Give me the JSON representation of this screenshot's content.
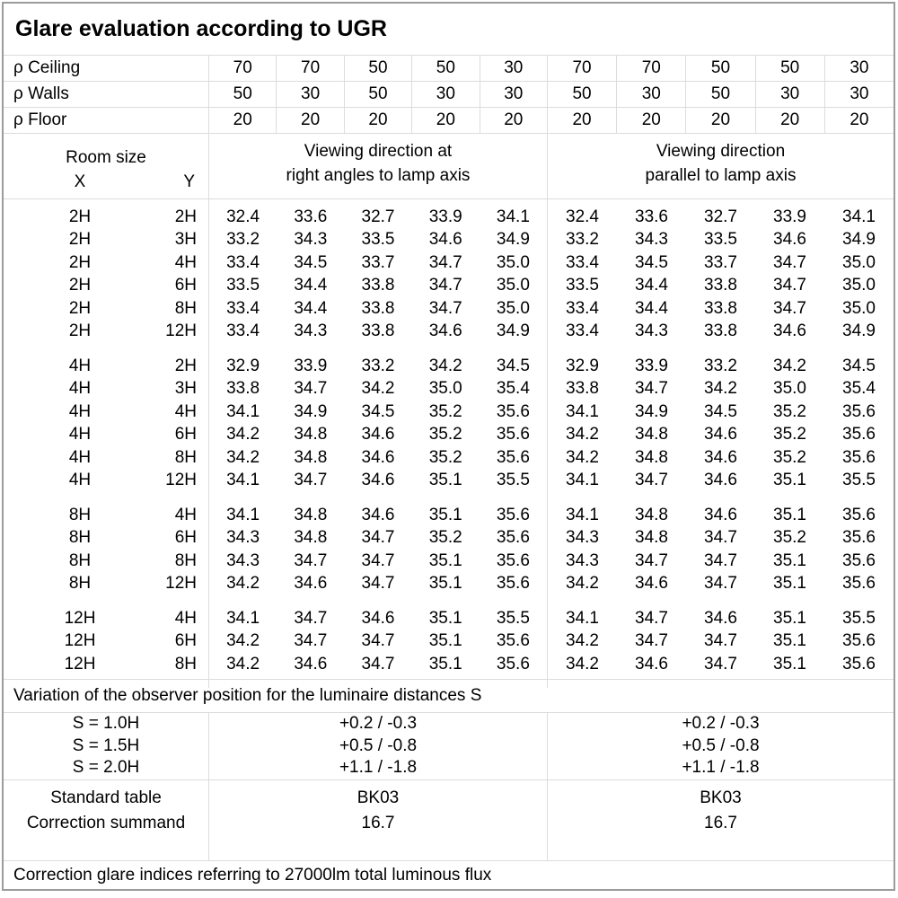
{
  "title": "Glare evaluation according to UGR",
  "colors": {
    "background": "#ffffff",
    "text": "#000000",
    "grid_line": "#dcdcdc",
    "outer_border": "#9b9b9b"
  },
  "header": {
    "rho_rows": [
      {
        "label": "ρ Ceiling",
        "values": [
          "70",
          "70",
          "50",
          "50",
          "30",
          "70",
          "70",
          "50",
          "50",
          "30"
        ]
      },
      {
        "label": "ρ Walls",
        "values": [
          "50",
          "30",
          "50",
          "30",
          "30",
          "50",
          "30",
          "50",
          "30",
          "30"
        ]
      },
      {
        "label": "ρ Floor",
        "values": [
          "20",
          "20",
          "20",
          "20",
          "20",
          "20",
          "20",
          "20",
          "20",
          "20"
        ]
      }
    ],
    "room_size_label": "Room size",
    "x_label": "X",
    "y_label": "Y",
    "viewing_right_angles": [
      "Viewing direction at",
      "right angles to lamp axis"
    ],
    "viewing_parallel": [
      "Viewing direction",
      "parallel to lamp axis"
    ]
  },
  "ugr_table": {
    "blocks": [
      {
        "rows": [
          {
            "x": "2H",
            "y": "2H",
            "right_angles": [
              "32.4",
              "33.6",
              "32.7",
              "33.9",
              "34.1"
            ],
            "parallel": [
              "32.4",
              "33.6",
              "32.7",
              "33.9",
              "34.1"
            ]
          },
          {
            "x": "2H",
            "y": "3H",
            "right_angles": [
              "33.2",
              "34.3",
              "33.5",
              "34.6",
              "34.9"
            ],
            "parallel": [
              "33.2",
              "34.3",
              "33.5",
              "34.6",
              "34.9"
            ]
          },
          {
            "x": "2H",
            "y": "4H",
            "right_angles": [
              "33.4",
              "34.5",
              "33.7",
              "34.7",
              "35.0"
            ],
            "parallel": [
              "33.4",
              "34.5",
              "33.7",
              "34.7",
              "35.0"
            ]
          },
          {
            "x": "2H",
            "y": "6H",
            "right_angles": [
              "33.5",
              "34.4",
              "33.8",
              "34.7",
              "35.0"
            ],
            "parallel": [
              "33.5",
              "34.4",
              "33.8",
              "34.7",
              "35.0"
            ]
          },
          {
            "x": "2H",
            "y": "8H",
            "right_angles": [
              "33.4",
              "34.4",
              "33.8",
              "34.7",
              "35.0"
            ],
            "parallel": [
              "33.4",
              "34.4",
              "33.8",
              "34.7",
              "35.0"
            ]
          },
          {
            "x": "2H",
            "y": "12H",
            "right_angles": [
              "33.4",
              "34.3",
              "33.8",
              "34.6",
              "34.9"
            ],
            "parallel": [
              "33.4",
              "34.3",
              "33.8",
              "34.6",
              "34.9"
            ]
          }
        ]
      },
      {
        "rows": [
          {
            "x": "4H",
            "y": "2H",
            "right_angles": [
              "32.9",
              "33.9",
              "33.2",
              "34.2",
              "34.5"
            ],
            "parallel": [
              "32.9",
              "33.9",
              "33.2",
              "34.2",
              "34.5"
            ]
          },
          {
            "x": "4H",
            "y": "3H",
            "right_angles": [
              "33.8",
              "34.7",
              "34.2",
              "35.0",
              "35.4"
            ],
            "parallel": [
              "33.8",
              "34.7",
              "34.2",
              "35.0",
              "35.4"
            ]
          },
          {
            "x": "4H",
            "y": "4H",
            "right_angles": [
              "34.1",
              "34.9",
              "34.5",
              "35.2",
              "35.6"
            ],
            "parallel": [
              "34.1",
              "34.9",
              "34.5",
              "35.2",
              "35.6"
            ]
          },
          {
            "x": "4H",
            "y": "6H",
            "right_angles": [
              "34.2",
              "34.8",
              "34.6",
              "35.2",
              "35.6"
            ],
            "parallel": [
              "34.2",
              "34.8",
              "34.6",
              "35.2",
              "35.6"
            ]
          },
          {
            "x": "4H",
            "y": "8H",
            "right_angles": [
              "34.2",
              "34.8",
              "34.6",
              "35.2",
              "35.6"
            ],
            "parallel": [
              "34.2",
              "34.8",
              "34.6",
              "35.2",
              "35.6"
            ]
          },
          {
            "x": "4H",
            "y": "12H",
            "right_angles": [
              "34.1",
              "34.7",
              "34.6",
              "35.1",
              "35.5"
            ],
            "parallel": [
              "34.1",
              "34.7",
              "34.6",
              "35.1",
              "35.5"
            ]
          }
        ]
      },
      {
        "rows": [
          {
            "x": "8H",
            "y": "4H",
            "right_angles": [
              "34.1",
              "34.8",
              "34.6",
              "35.1",
              "35.6"
            ],
            "parallel": [
              "34.1",
              "34.8",
              "34.6",
              "35.1",
              "35.6"
            ]
          },
          {
            "x": "8H",
            "y": "6H",
            "right_angles": [
              "34.3",
              "34.8",
              "34.7",
              "35.2",
              "35.6"
            ],
            "parallel": [
              "34.3",
              "34.8",
              "34.7",
              "35.2",
              "35.6"
            ]
          },
          {
            "x": "8H",
            "y": "8H",
            "right_angles": [
              "34.3",
              "34.7",
              "34.7",
              "35.1",
              "35.6"
            ],
            "parallel": [
              "34.3",
              "34.7",
              "34.7",
              "35.1",
              "35.6"
            ]
          },
          {
            "x": "8H",
            "y": "12H",
            "right_angles": [
              "34.2",
              "34.6",
              "34.7",
              "35.1",
              "35.6"
            ],
            "parallel": [
              "34.2",
              "34.6",
              "34.7",
              "35.1",
              "35.6"
            ]
          }
        ]
      },
      {
        "rows": [
          {
            "x": "12H",
            "y": "4H",
            "right_angles": [
              "34.1",
              "34.7",
              "34.6",
              "35.1",
              "35.5"
            ],
            "parallel": [
              "34.1",
              "34.7",
              "34.6",
              "35.1",
              "35.5"
            ]
          },
          {
            "x": "12H",
            "y": "6H",
            "right_angles": [
              "34.2",
              "34.7",
              "34.7",
              "35.1",
              "35.6"
            ],
            "parallel": [
              "34.2",
              "34.7",
              "34.7",
              "35.1",
              "35.6"
            ]
          },
          {
            "x": "12H",
            "y": "8H",
            "right_angles": [
              "34.2",
              "34.6",
              "34.7",
              "35.1",
              "35.6"
            ],
            "parallel": [
              "34.2",
              "34.6",
              "34.7",
              "35.1",
              "35.6"
            ]
          }
        ]
      }
    ]
  },
  "variation_note": "Variation of the observer position for the luminaire distances S",
  "observer_variation": {
    "s_labels": [
      "S = 1.0H",
      "S = 1.5H",
      "S = 2.0H"
    ],
    "right_angles_values": [
      "+0.2 / -0.3",
      "+0.5 / -0.8",
      "+1.1 / -1.8"
    ],
    "parallel_values": [
      "+0.2 / -0.3",
      "+0.5 / -0.8",
      "+1.1 / -1.8"
    ]
  },
  "standard": {
    "labels": [
      "Standard table",
      "Correction summand"
    ],
    "right_angles_values": [
      "BK03",
      "16.7"
    ],
    "parallel_values": [
      "BK03",
      "16.7"
    ]
  },
  "flux_note": "Correction glare indices referring to 27000lm total luminous flux"
}
